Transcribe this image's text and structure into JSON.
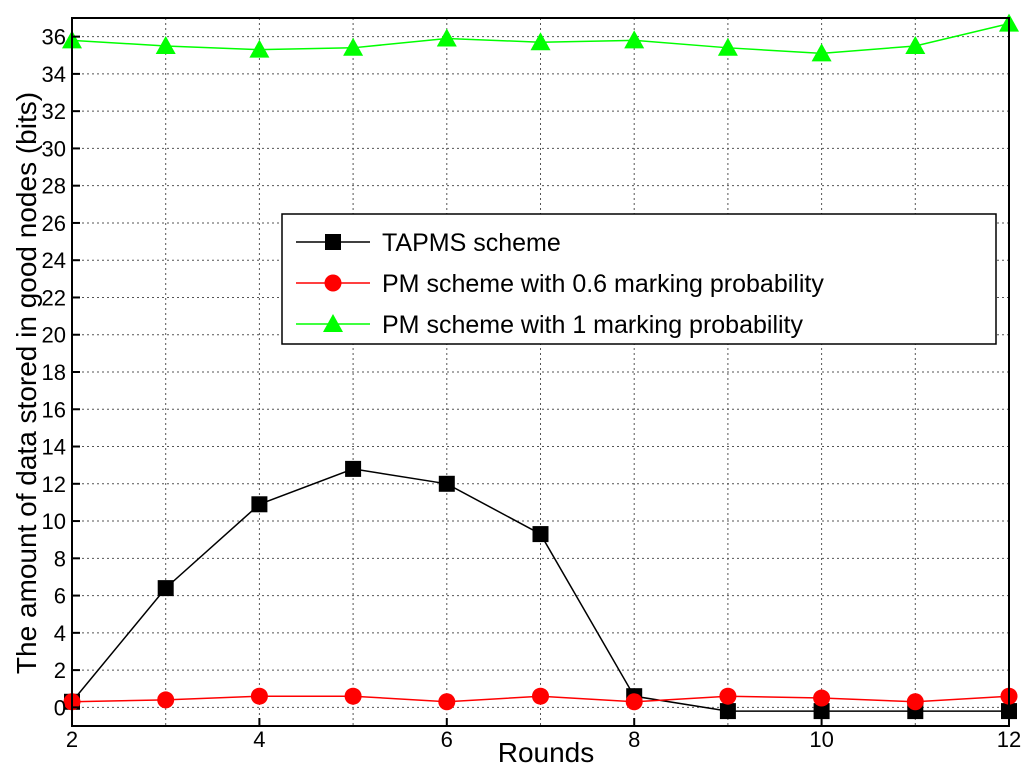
{
  "chart_data": {
    "type": "line",
    "title": "",
    "xlabel": "Rounds",
    "ylabel": "The amount of data stored in good nodes (bits)",
    "xlim": [
      2,
      12
    ],
    "ylim": [
      -1,
      37
    ],
    "x_ticks": [
      2,
      4,
      6,
      8,
      10,
      12
    ],
    "x_tick_labels": [
      "2",
      "4",
      "6",
      "8",
      "10",
      "12"
    ],
    "y_ticks": [
      0,
      2,
      4,
      6,
      8,
      10,
      12,
      14,
      16,
      18,
      20,
      22,
      24,
      26,
      28,
      30,
      32,
      34,
      36
    ],
    "y_tick_labels": [
      "0",
      "2",
      "4",
      "6",
      "8",
      "10",
      "12",
      "14",
      "16",
      "18",
      "20",
      "22",
      "24",
      "26",
      "28",
      "30",
      "32",
      "34",
      "36"
    ],
    "grid": true,
    "legend_position": "center-right",
    "x": [
      2,
      3,
      4,
      5,
      6,
      7,
      8,
      9,
      10,
      11,
      12
    ],
    "series": [
      {
        "name": "TAPMS scheme",
        "color": "#000000",
        "marker": "square",
        "values": [
          0.3,
          6.4,
          10.9,
          12.8,
          12.0,
          9.3,
          0.6,
          -0.2,
          -0.2,
          -0.2,
          -0.2
        ]
      },
      {
        "name": "PM scheme with 0.6 marking probability",
        "color": "#ff0000",
        "marker": "circle",
        "values": [
          0.3,
          0.4,
          0.6,
          0.6,
          0.3,
          0.6,
          0.3,
          0.6,
          0.5,
          0.3,
          0.6
        ]
      },
      {
        "name": "PM scheme with 1 marking probability",
        "color": "#00ff00",
        "marker": "triangle",
        "values": [
          35.8,
          35.5,
          35.3,
          35.4,
          35.9,
          35.7,
          35.8,
          35.4,
          35.1,
          35.5,
          36.7
        ]
      }
    ]
  }
}
